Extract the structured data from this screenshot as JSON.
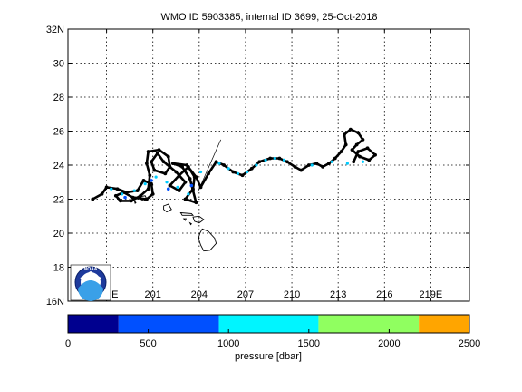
{
  "title": "WMO ID 5903385, internal ID 3699, 25-Oct-2018",
  "map": {
    "lat_labels": [
      "32N",
      "30",
      "28",
      "26",
      "24",
      "22",
      "20",
      "18",
      "16N"
    ],
    "lat_values": [
      32,
      30,
      28,
      26,
      24,
      22,
      20,
      18,
      16
    ],
    "lon_labels": [
      "198E",
      "201",
      "204",
      "207",
      "210",
      "213",
      "216",
      "219E"
    ],
    "lon_values": [
      198,
      201,
      204,
      207,
      210,
      213,
      216,
      219
    ],
    "xlim": [
      195.5,
      221.5
    ],
    "ylim": [
      16,
      32
    ],
    "grid": true,
    "logo": "noaa-logo"
  },
  "colorbar": {
    "label": "pressure [dbar]",
    "tick_labels": [
      "0",
      "500",
      "1000",
      "1500",
      "2000",
      "2500"
    ],
    "range": [
      0,
      2500
    ],
    "bins": [
      {
        "from": 0,
        "to": 315,
        "color": "#00008f"
      },
      {
        "from": 315,
        "to": 940,
        "color": "#0050ff"
      },
      {
        "from": 940,
        "to": 1560,
        "color": "#00f5ff"
      },
      {
        "from": 1560,
        "to": 2185,
        "color": "#90ff60"
      },
      {
        "from": 2185,
        "to": 2500,
        "color": "#ffa500"
      }
    ]
  },
  "chart_data": {
    "type": "scatter",
    "title": "WMO ID 5903385, internal ID 3699, 25-Oct-2018",
    "xlabel": "",
    "ylabel": "",
    "xlim": [
      195.5,
      221.5
    ],
    "ylim": [
      16,
      32
    ],
    "colors": {
      "track": "#000000",
      "profile": "#00ccff",
      "deep_profile": "#0050ff"
    },
    "track": [
      [
        197.1,
        22.0
      ],
      [
        197.7,
        22.3
      ],
      [
        198.0,
        22.7
      ],
      [
        198.7,
        22.6
      ],
      [
        199.3,
        22.4
      ],
      [
        200.0,
        22.5
      ],
      [
        200.4,
        23.1
      ],
      [
        200.9,
        22.9
      ],
      [
        201.0,
        22.3
      ],
      [
        200.6,
        22.0
      ],
      [
        199.7,
        22.1
      ],
      [
        199.1,
        22.4
      ],
      [
        198.6,
        22.2
      ],
      [
        198.9,
        21.9
      ],
      [
        199.6,
        21.9
      ],
      [
        200.2,
        22.2
      ],
      [
        200.7,
        22.6
      ],
      [
        200.8,
        23.4
      ],
      [
        200.6,
        24.1
      ],
      [
        200.7,
        24.8
      ],
      [
        201.4,
        24.9
      ],
      [
        202.0,
        24.5
      ],
      [
        202.1,
        23.9
      ],
      [
        201.8,
        23.5
      ],
      [
        201.1,
        23.7
      ],
      [
        200.9,
        24.2
      ],
      [
        201.3,
        24.7
      ],
      [
        201.7,
        24.2
      ],
      [
        202.5,
        23.6
      ],
      [
        203.1,
        23.0
      ],
      [
        202.7,
        22.5
      ],
      [
        202.1,
        22.8
      ],
      [
        202.7,
        23.4
      ],
      [
        203.3,
        23.9
      ],
      [
        203.7,
        23.3
      ],
      [
        203.6,
        22.6
      ],
      [
        203.1,
        22.0
      ],
      [
        203.8,
        21.8
      ],
      [
        203.6,
        22.5
      ],
      [
        203.4,
        23.2
      ],
      [
        202.9,
        23.9
      ],
      [
        202.3,
        24.1
      ],
      [
        203.2,
        24.0
      ],
      [
        203.8,
        23.3
      ],
      [
        204.1,
        22.7
      ],
      [
        204.6,
        23.5
      ],
      [
        205.1,
        24.2
      ],
      [
        205.6,
        24.0
      ],
      [
        206.2,
        23.6
      ],
      [
        206.8,
        23.4
      ],
      [
        207.4,
        23.8
      ],
      [
        207.9,
        24.2
      ],
      [
        208.6,
        24.4
      ],
      [
        209.2,
        24.4
      ],
      [
        209.7,
        24.2
      ],
      [
        210.2,
        23.9
      ],
      [
        210.6,
        23.7
      ],
      [
        211.1,
        24.0
      ],
      [
        211.6,
        24.1
      ],
      [
        212.0,
        23.9
      ],
      [
        212.4,
        24.1
      ],
      [
        212.8,
        24.4
      ],
      [
        213.2,
        24.8
      ],
      [
        213.5,
        25.2
      ],
      [
        213.4,
        25.8
      ],
      [
        213.8,
        26.1
      ],
      [
        214.3,
        25.9
      ],
      [
        214.6,
        25.5
      ],
      [
        214.2,
        25.2
      ],
      [
        213.9,
        24.9
      ],
      [
        214.4,
        24.5
      ],
      [
        215.0,
        24.3
      ],
      [
        215.4,
        24.6
      ],
      [
        214.9,
        25.0
      ],
      [
        214.3,
        24.8
      ],
      [
        214.0,
        24.2
      ]
    ],
    "profiles": [
      [
        198.3,
        22.6
      ],
      [
        199.0,
        22.3
      ],
      [
        199.8,
        22.5
      ],
      [
        200.5,
        22.9
      ],
      [
        201.2,
        23.3
      ],
      [
        201.9,
        23.0
      ],
      [
        202.6,
        22.7
      ],
      [
        203.3,
        22.3
      ],
      [
        204.1,
        23.6
      ],
      [
        205.3,
        24.1
      ],
      [
        205.9,
        23.8
      ],
      [
        206.5,
        23.5
      ],
      [
        207.1,
        23.6
      ],
      [
        207.7,
        24.0
      ],
      [
        208.3,
        24.3
      ],
      [
        208.9,
        24.4
      ],
      [
        209.5,
        24.3
      ],
      [
        211.3,
        24.0
      ],
      [
        212.6,
        24.2
      ],
      [
        213.6,
        24.1
      ],
      [
        214.6,
        24.2
      ]
    ],
    "deep_profiles": [
      [
        199.2,
        22.1
      ],
      [
        200.9,
        23.1
      ],
      [
        202.0,
        22.6
      ],
      [
        203.5,
        22.8
      ]
    ],
    "drift_line": [
      [
        203.9,
        22.4
      ],
      [
        205.4,
        25.5
      ]
    ],
    "series": []
  },
  "islands": [
    {
      "name": "niihau",
      "points": [
        [
          199.8,
          21.9
        ],
        [
          199.9,
          21.8
        ],
        [
          199.85,
          21.75
        ]
      ]
    },
    {
      "name": "kauai",
      "points": [
        [
          200.2,
          22.15
        ],
        [
          200.5,
          22.2
        ],
        [
          200.6,
          22.0
        ],
        [
          200.4,
          21.9
        ],
        [
          200.2,
          22.0
        ]
      ]
    },
    {
      "name": "oahu",
      "points": [
        [
          201.7,
          21.6
        ],
        [
          202.0,
          21.7
        ],
        [
          202.2,
          21.4
        ],
        [
          201.9,
          21.25
        ],
        [
          201.7,
          21.4
        ]
      ]
    },
    {
      "name": "molokai",
      "points": [
        [
          202.8,
          21.2
        ],
        [
          203.5,
          21.15
        ],
        [
          203.6,
          21.05
        ],
        [
          202.9,
          21.05
        ]
      ]
    },
    {
      "name": "lanai",
      "points": [
        [
          203.0,
          20.85
        ],
        [
          203.15,
          20.85
        ],
        [
          203.1,
          20.75
        ]
      ]
    },
    {
      "name": "maui",
      "points": [
        [
          203.6,
          20.95
        ],
        [
          204.0,
          21.0
        ],
        [
          204.3,
          20.8
        ],
        [
          204.0,
          20.6
        ],
        [
          203.7,
          20.7
        ]
      ]
    },
    {
      "name": "kahoolawe",
      "points": [
        [
          203.4,
          20.6
        ],
        [
          203.5,
          20.55
        ],
        [
          203.45,
          20.5
        ]
      ]
    },
    {
      "name": "hawaii",
      "points": [
        [
          204.2,
          20.25
        ],
        [
          204.6,
          20.1
        ],
        [
          205.0,
          19.7
        ],
        [
          205.1,
          19.4
        ],
        [
          204.7,
          19.0
        ],
        [
          204.3,
          18.95
        ],
        [
          204.1,
          19.3
        ],
        [
          203.95,
          19.7
        ],
        [
          204.05,
          20.0
        ]
      ]
    }
  ]
}
